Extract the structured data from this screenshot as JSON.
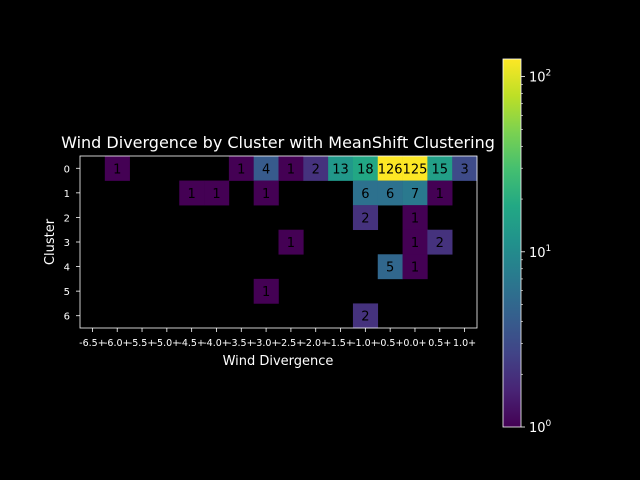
{
  "chart_data": {
    "type": "heatmap",
    "title": "Wind Divergence by Cluster with MeanShift Clustering",
    "xlabel": "Wind Divergence",
    "ylabel": "Cluster",
    "x_categories": [
      "-6.5+",
      "-6.0+",
      "-5.5+",
      "-5.0+",
      "-4.5+",
      "-4.0+",
      "-3.5+",
      "-3.0+",
      "-2.5+",
      "-2.0+",
      "-1.5+",
      "-1.0+",
      "-0.5+",
      "0.0+",
      "0.5+",
      "1.0+"
    ],
    "y_categories": [
      "0",
      "1",
      "2",
      "3",
      "4",
      "5",
      "6"
    ],
    "values": [
      [
        null,
        1,
        null,
        null,
        null,
        null,
        1,
        4,
        1,
        2,
        13,
        18,
        126,
        125,
        15,
        3
      ],
      [
        null,
        null,
        null,
        null,
        1,
        1,
        null,
        1,
        null,
        null,
        null,
        6,
        6,
        7,
        1,
        null
      ],
      [
        null,
        null,
        null,
        null,
        null,
        null,
        null,
        null,
        null,
        null,
        null,
        2,
        null,
        1,
        null,
        null
      ],
      [
        null,
        null,
        null,
        null,
        null,
        null,
        null,
        null,
        1,
        null,
        null,
        null,
        null,
        1,
        2,
        null
      ],
      [
        null,
        null,
        null,
        null,
        null,
        null,
        null,
        null,
        null,
        null,
        null,
        null,
        5,
        1,
        null,
        null
      ],
      [
        null,
        null,
        null,
        null,
        null,
        null,
        null,
        1,
        null,
        null,
        null,
        null,
        null,
        null,
        null,
        null
      ],
      [
        null,
        null,
        null,
        null,
        null,
        null,
        null,
        null,
        null,
        null,
        null,
        2,
        null,
        null,
        null,
        null
      ]
    ],
    "colorscale": "viridis",
    "color_scale_type": "log",
    "color_range": [
      1,
      126
    ],
    "colorbar_ticks": [
      {
        "value": 1,
        "base": "10",
        "exp": "0"
      },
      {
        "value": 10,
        "base": "10",
        "exp": "1"
      },
      {
        "value": 100,
        "base": "10",
        "exp": "2"
      }
    ],
    "colors": {
      "background": "#000000",
      "text": "#ffffff"
    }
  }
}
